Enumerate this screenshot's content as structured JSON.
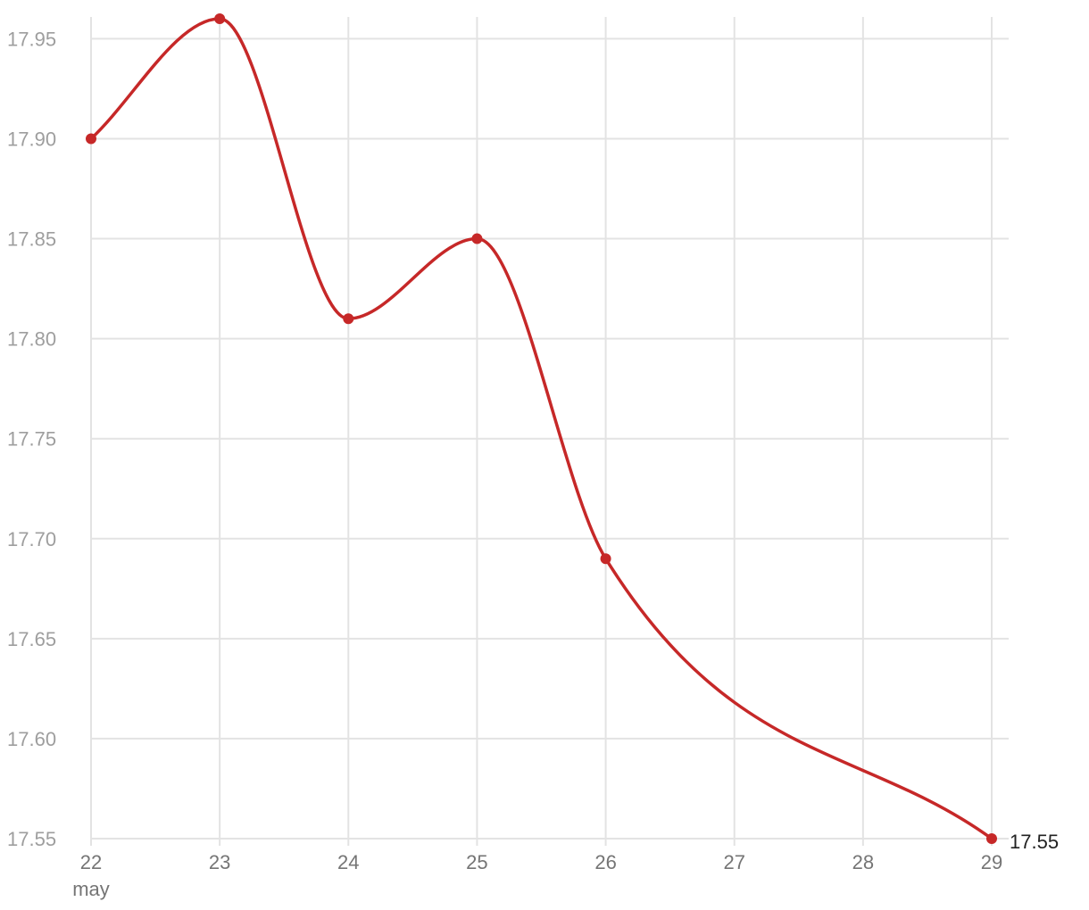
{
  "chart_data": {
    "type": "line",
    "x": [
      22,
      23,
      24,
      25,
      26,
      29
    ],
    "x_ticks": [
      "22",
      "23",
      "24",
      "25",
      "26",
      "27",
      "28",
      "29"
    ],
    "x_tick_values": [
      22,
      23,
      24,
      25,
      26,
      27,
      28,
      29
    ],
    "x_sublabel": "may",
    "series": [
      {
        "values": [
          17.9,
          17.96,
          17.81,
          17.85,
          17.69,
          17.55
        ],
        "color": "#c62828"
      }
    ],
    "y_ticks": [
      "17.55",
      "17.60",
      "17.65",
      "17.70",
      "17.75",
      "17.80",
      "17.85",
      "17.90",
      "17.95"
    ],
    "y_tick_values": [
      17.55,
      17.6,
      17.65,
      17.7,
      17.75,
      17.8,
      17.85,
      17.9,
      17.95
    ],
    "xlim": [
      22,
      29
    ],
    "ylim": [
      17.55,
      17.96
    ],
    "end_label": "17.55",
    "grid": true,
    "title": "",
    "xlabel": "",
    "ylabel": ""
  }
}
